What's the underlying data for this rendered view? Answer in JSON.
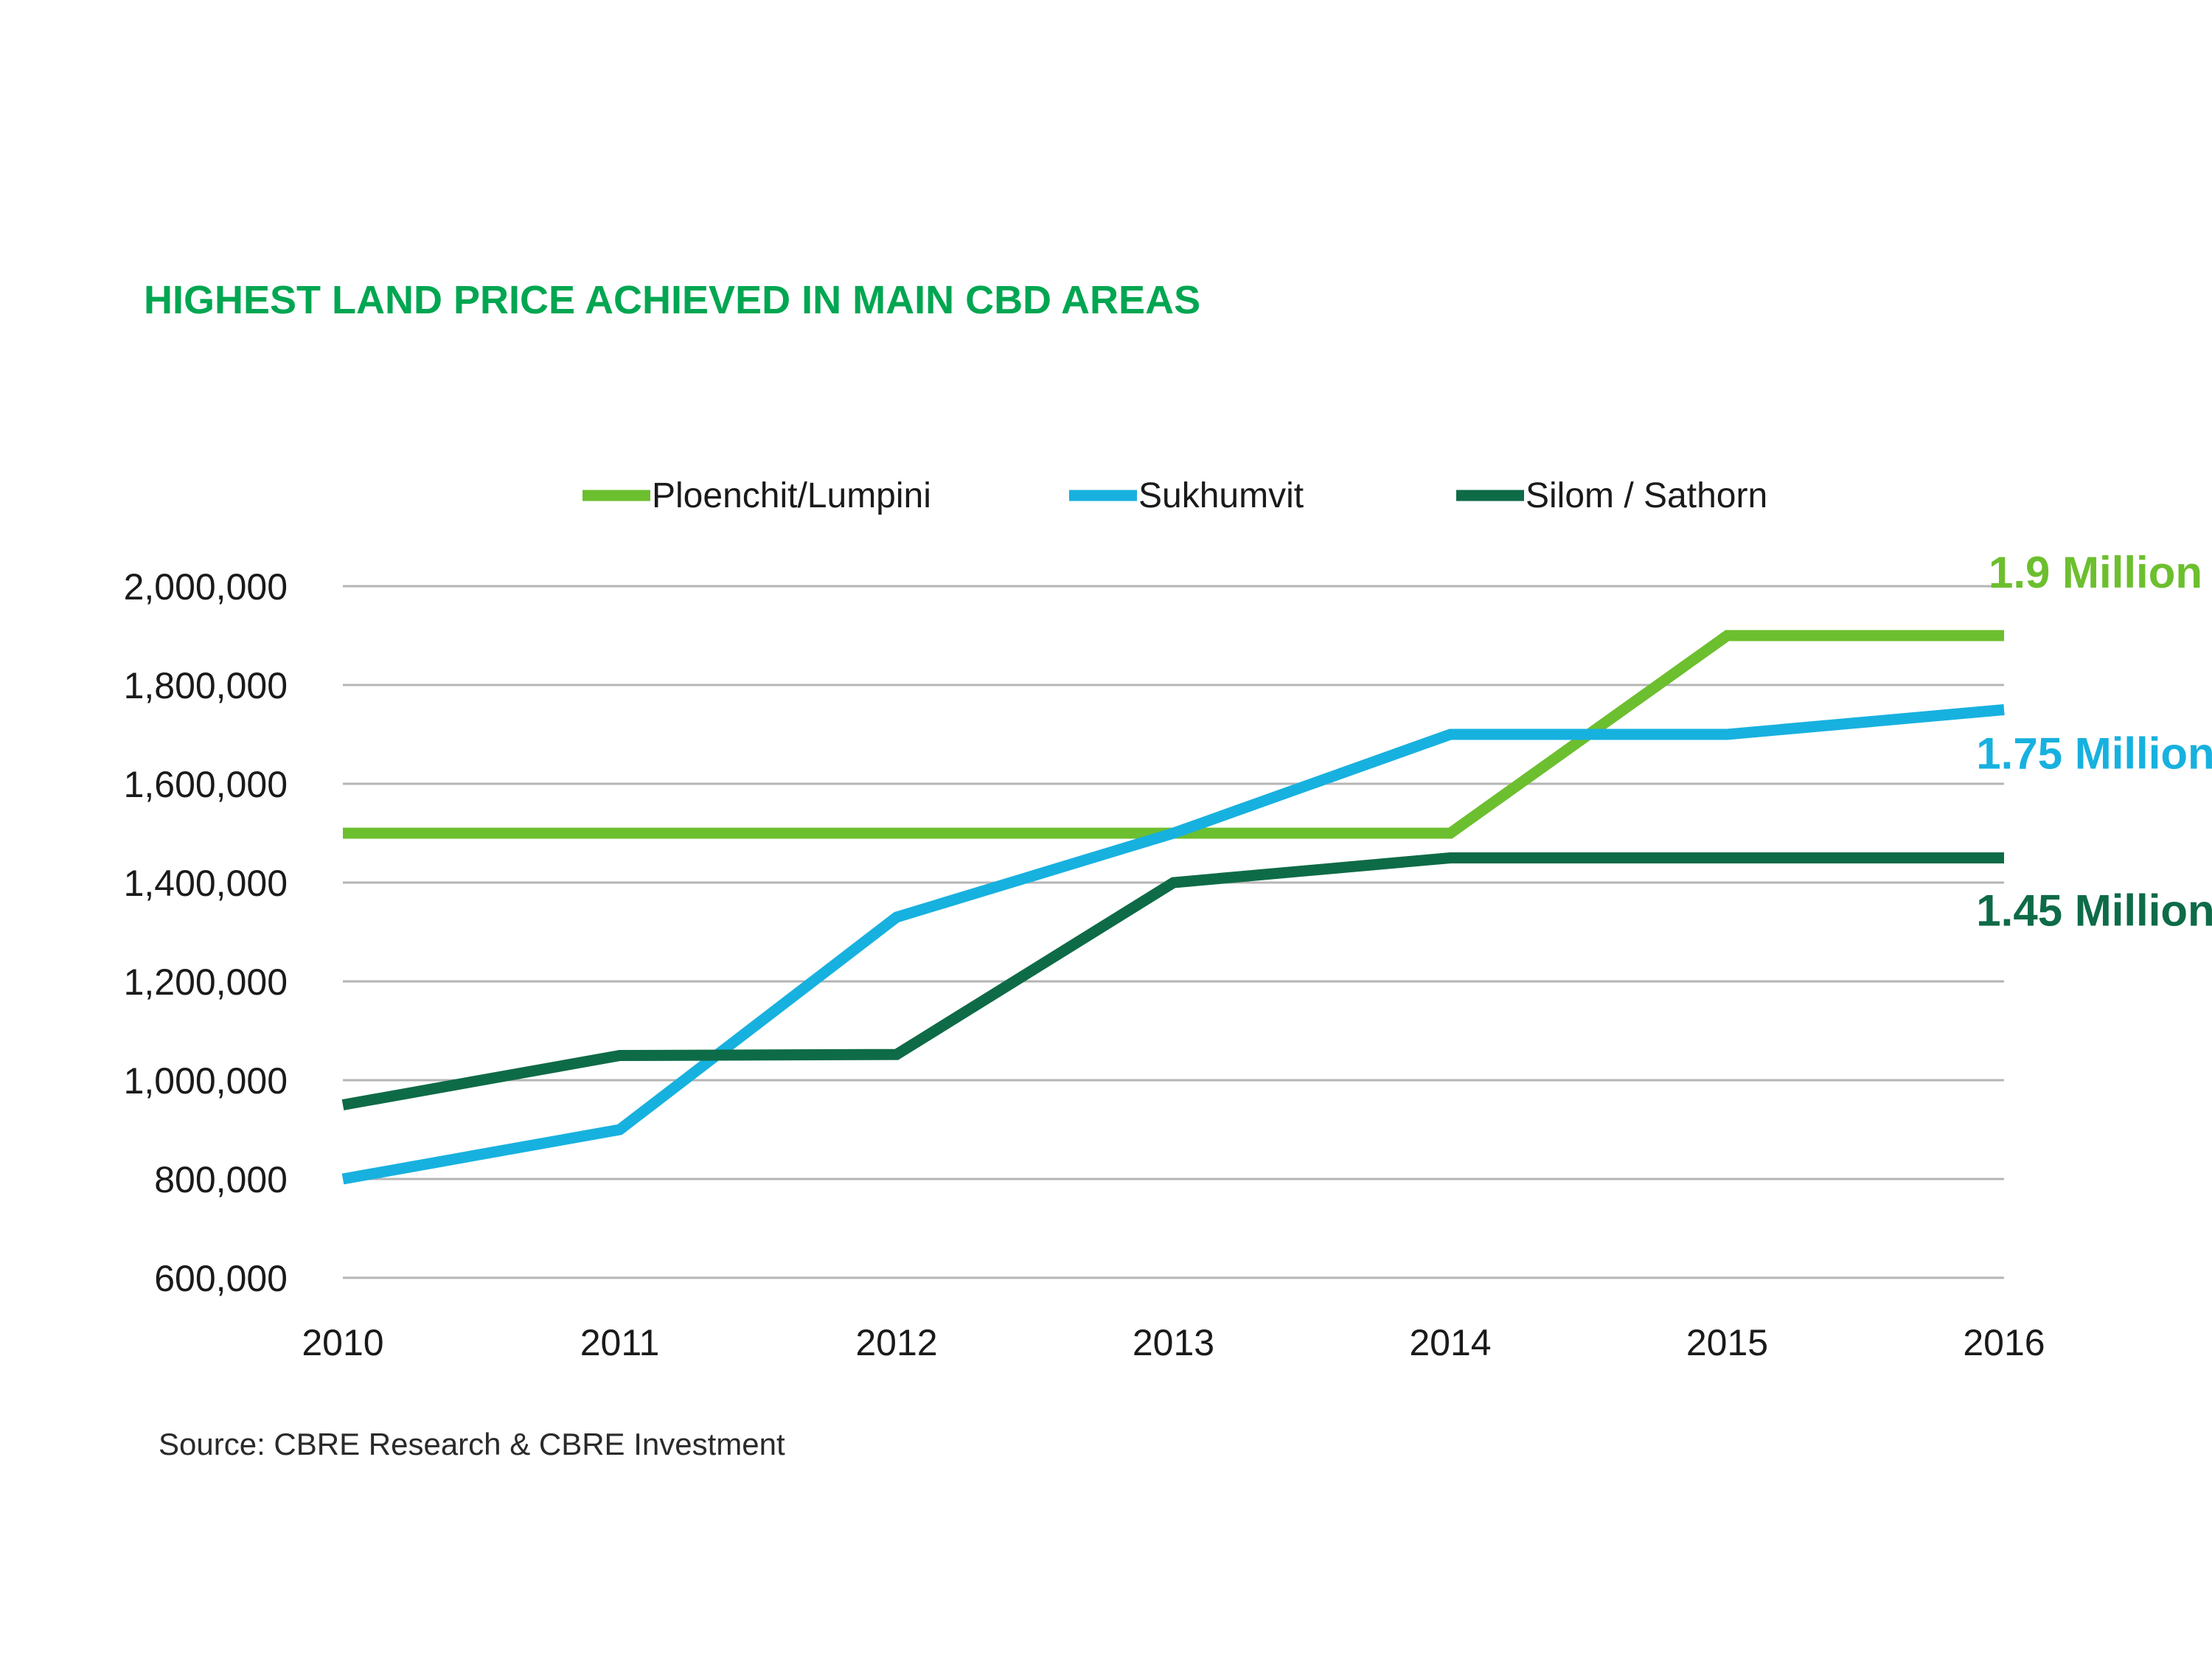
{
  "colors": {
    "title": "#00A651",
    "grid": "#b5b5b5",
    "ploenchit": "#6CBF2E",
    "sukhumvit": "#17B1DF",
    "silom": "#0E6B47"
  },
  "chart_data": {
    "type": "line",
    "title": "HIGHEST LAND PRICE ACHIEVED IN MAIN CBD AREAS",
    "x": [
      "2010",
      "2011",
      "2012",
      "2013",
      "2014",
      "2015",
      "2016"
    ],
    "ylim": [
      600000,
      2000000
    ],
    "yticks": [
      2000000,
      1800000,
      1600000,
      1400000,
      1200000,
      1000000,
      800000,
      600000
    ],
    "ytick_labels": [
      "2,000,000",
      "1,800,000",
      "1,600,000",
      "1,400,000",
      "1,200,000",
      "1,000,000",
      "800,000",
      "600,000"
    ],
    "grid": true,
    "legend_position": "top",
    "series": [
      {
        "name": "Ploenchit/Lumpini",
        "key": "ploenchit",
        "values": [
          1500000,
          1500000,
          1500000,
          1500000,
          1500000,
          1900000,
          1900000
        ],
        "end_label": "1.9 Million"
      },
      {
        "name": "Sukhumvit",
        "key": "sukhumvit",
        "values": [
          800000,
          900000,
          1330000,
          1500000,
          1700000,
          1700000,
          1750000
        ],
        "end_label": "1.75 Million"
      },
      {
        "name": "Silom / Sathorn",
        "key": "silom",
        "values": [
          950000,
          1050000,
          1052000,
          1400000,
          1450000,
          1450000,
          1450000
        ],
        "end_label": "1.45 Million"
      }
    ],
    "source": "Source: CBRE Research & CBRE Investment"
  }
}
